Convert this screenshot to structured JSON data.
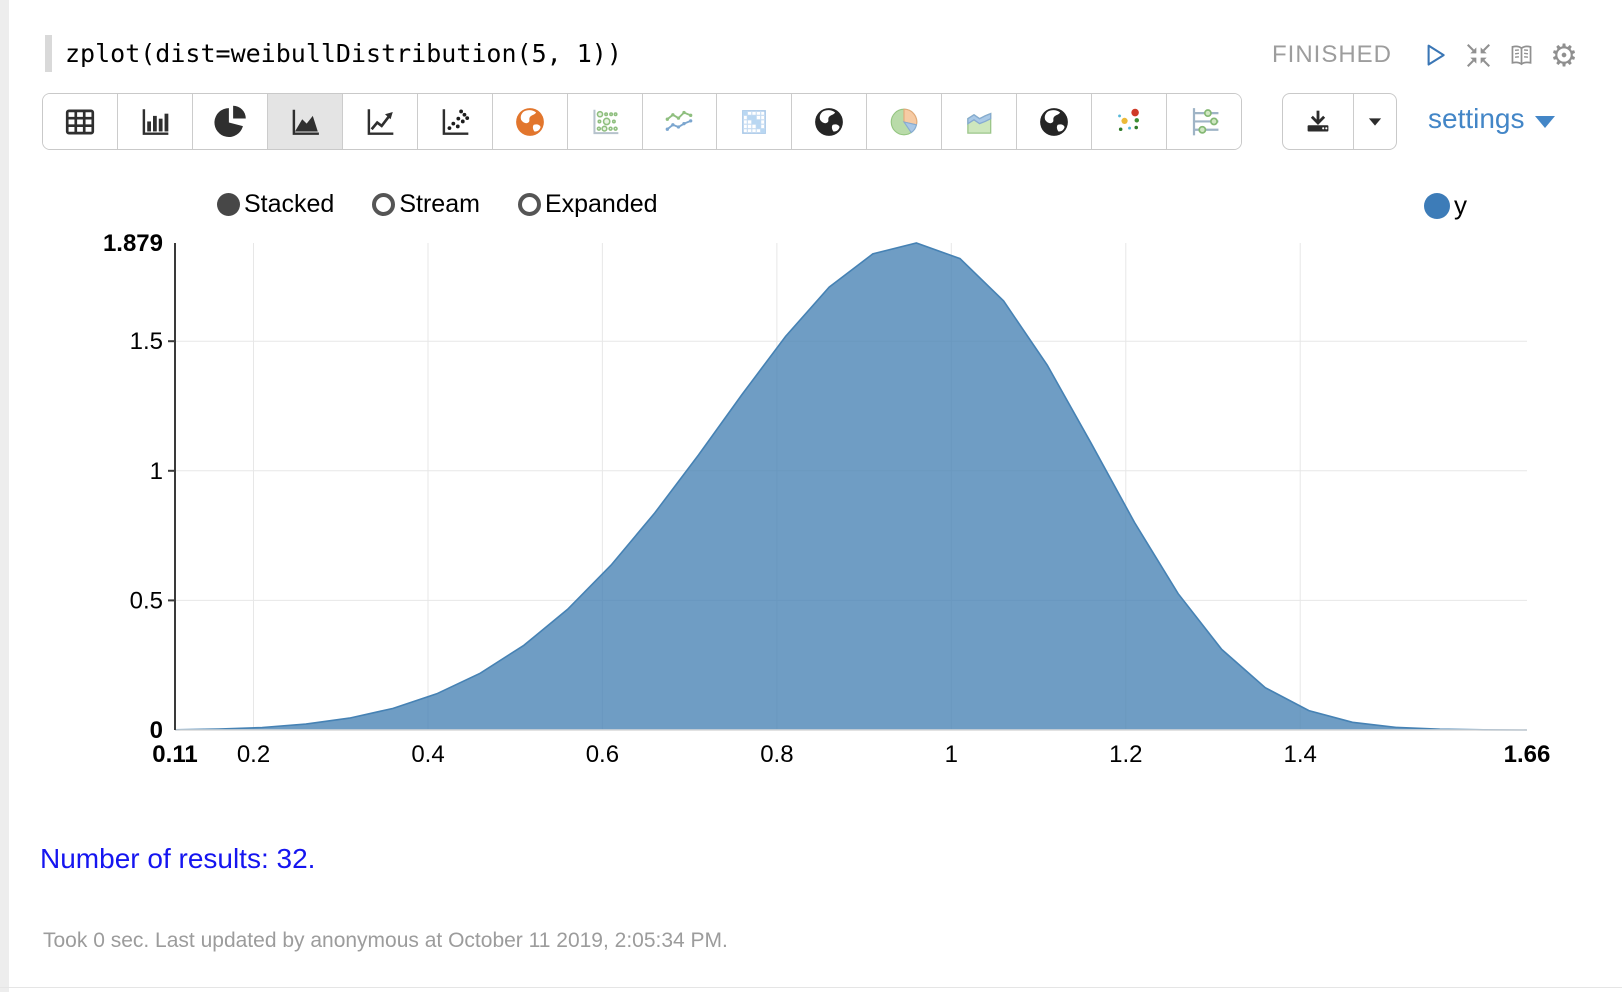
{
  "paragraph": {
    "code": "zplot(dist=weibullDistribution(5, 1))",
    "status": "FINISHED",
    "actions": [
      {
        "icon": "play-icon"
      },
      {
        "icon": "shrink-icon"
      },
      {
        "icon": "book-icon"
      },
      {
        "icon": "gear-icon"
      }
    ]
  },
  "toolbar": {
    "chart_buttons": [
      {
        "icon": "table-icon",
        "selected": false
      },
      {
        "icon": "bar-chart-icon",
        "selected": false
      },
      {
        "icon": "pie-chart-icon",
        "selected": false
      },
      {
        "icon": "area-chart-icon",
        "selected": true
      },
      {
        "icon": "line-chart-icon",
        "selected": false
      },
      {
        "icon": "scatter-plot-icon",
        "selected": false
      },
      {
        "icon": "globe-orange-icon",
        "selected": false
      },
      {
        "icon": "bubble-chart-icon",
        "selected": false
      },
      {
        "icon": "multi-line-chart-icon",
        "selected": false
      },
      {
        "icon": "heatmap-icon",
        "selected": false
      },
      {
        "icon": "globe-dark-icon",
        "selected": false
      },
      {
        "icon": "pie-pastel-icon",
        "selected": false
      },
      {
        "icon": "area-pastel-icon",
        "selected": false
      },
      {
        "icon": "globe-dark-2-icon",
        "selected": false
      },
      {
        "icon": "scatter-color-icon",
        "selected": false
      },
      {
        "icon": "parallel-coordinates-icon",
        "selected": false
      }
    ],
    "download": {
      "icon": "download-icon",
      "caret_icon": "caret-down-icon"
    },
    "settings_label": "settings"
  },
  "chart_controls": {
    "modes": [
      {
        "label": "Stacked",
        "selected": true
      },
      {
        "label": "Stream",
        "selected": false
      },
      {
        "label": "Expanded",
        "selected": false
      }
    ],
    "legend": [
      {
        "label": "y",
        "color": "#3d7cb8"
      }
    ]
  },
  "chart_data": {
    "type": "area",
    "series": [
      {
        "name": "y",
        "color": "#4682b4",
        "fill_opacity": 0.78,
        "x": [
          0.11,
          0.16,
          0.21,
          0.26,
          0.31,
          0.36,
          0.41,
          0.46,
          0.51,
          0.56,
          0.61,
          0.66,
          0.71,
          0.76,
          0.81,
          0.86,
          0.91,
          0.96,
          1.01,
          1.06,
          1.11,
          1.16,
          1.21,
          1.26,
          1.31,
          1.36,
          1.41,
          1.46,
          1.51,
          1.56,
          1.61,
          1.66
        ],
        "values": [
          0.0007,
          0.0033,
          0.0097,
          0.0228,
          0.046,
          0.0835,
          0.1397,
          0.2193,
          0.3268,
          0.4654,
          0.6362,
          0.8372,
          1.0608,
          1.2944,
          1.5188,
          1.7087,
          1.8369,
          1.879,
          1.8189,
          1.6557,
          1.4076,
          1.1082,
          0.801,
          0.5264,
          0.3109,
          0.1631,
          0.075,
          0.0298,
          0.0101,
          0.0029,
          0.0007,
          0.0001
        ]
      }
    ],
    "x_axis": {
      "min": 0.11,
      "max": 1.66,
      "min_label": "0.11",
      "max_label": "1.66",
      "ticks": [
        {
          "value": 0.2,
          "label": "0.2"
        },
        {
          "value": 0.4,
          "label": "0.4"
        },
        {
          "value": 0.6,
          "label": "0.6"
        },
        {
          "value": 0.8,
          "label": "0.8"
        },
        {
          "value": 1,
          "label": "1"
        },
        {
          "value": 1.2,
          "label": "1.2"
        },
        {
          "value": 1.4,
          "label": "1.4"
        }
      ]
    },
    "y_axis": {
      "min": 0,
      "max": 1.879,
      "min_label": "0",
      "max_label": "1.879",
      "ticks": [
        {
          "value": 0.5,
          "label": "0.5"
        },
        {
          "value": 1,
          "label": "1"
        },
        {
          "value": 1.5,
          "label": "1.5"
        }
      ]
    },
    "grid": true,
    "legend_position": "top-right"
  },
  "results": {
    "text": "Number of results: 32."
  },
  "footer": {
    "text": "Took 0 sec. Last updated by anonymous at October 11 2019, 2:05:34 PM."
  },
  "colors": {
    "series": "#4682b4",
    "legend_dot": "#3d7cb8",
    "settings_link": "#4386c7",
    "results_text": "#1515f0",
    "status_text": "#9d9d9d"
  }
}
